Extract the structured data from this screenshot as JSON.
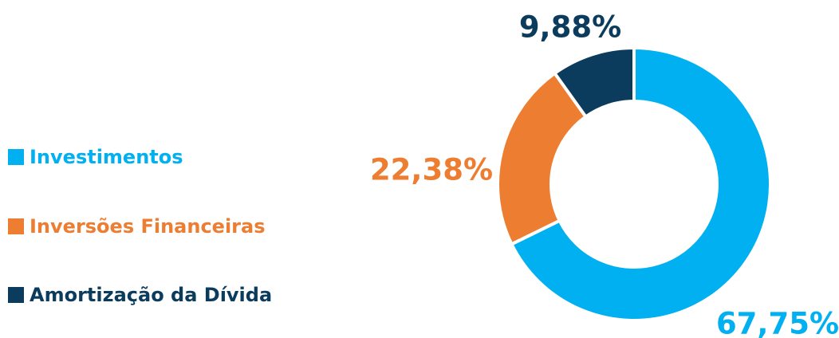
{
  "chart_data": {
    "type": "donut",
    "categories": [
      "Investimentos",
      "Inversões Financeiras",
      "Amortização da Dívida"
    ],
    "values": [
      67.75,
      22.38,
      9.88
    ],
    "value_labels": [
      "67,75%",
      "22,38%",
      "9,88%"
    ],
    "colors": [
      "#00b0f0",
      "#ed7d31",
      "#0b3c5d"
    ],
    "legend": "left"
  }
}
